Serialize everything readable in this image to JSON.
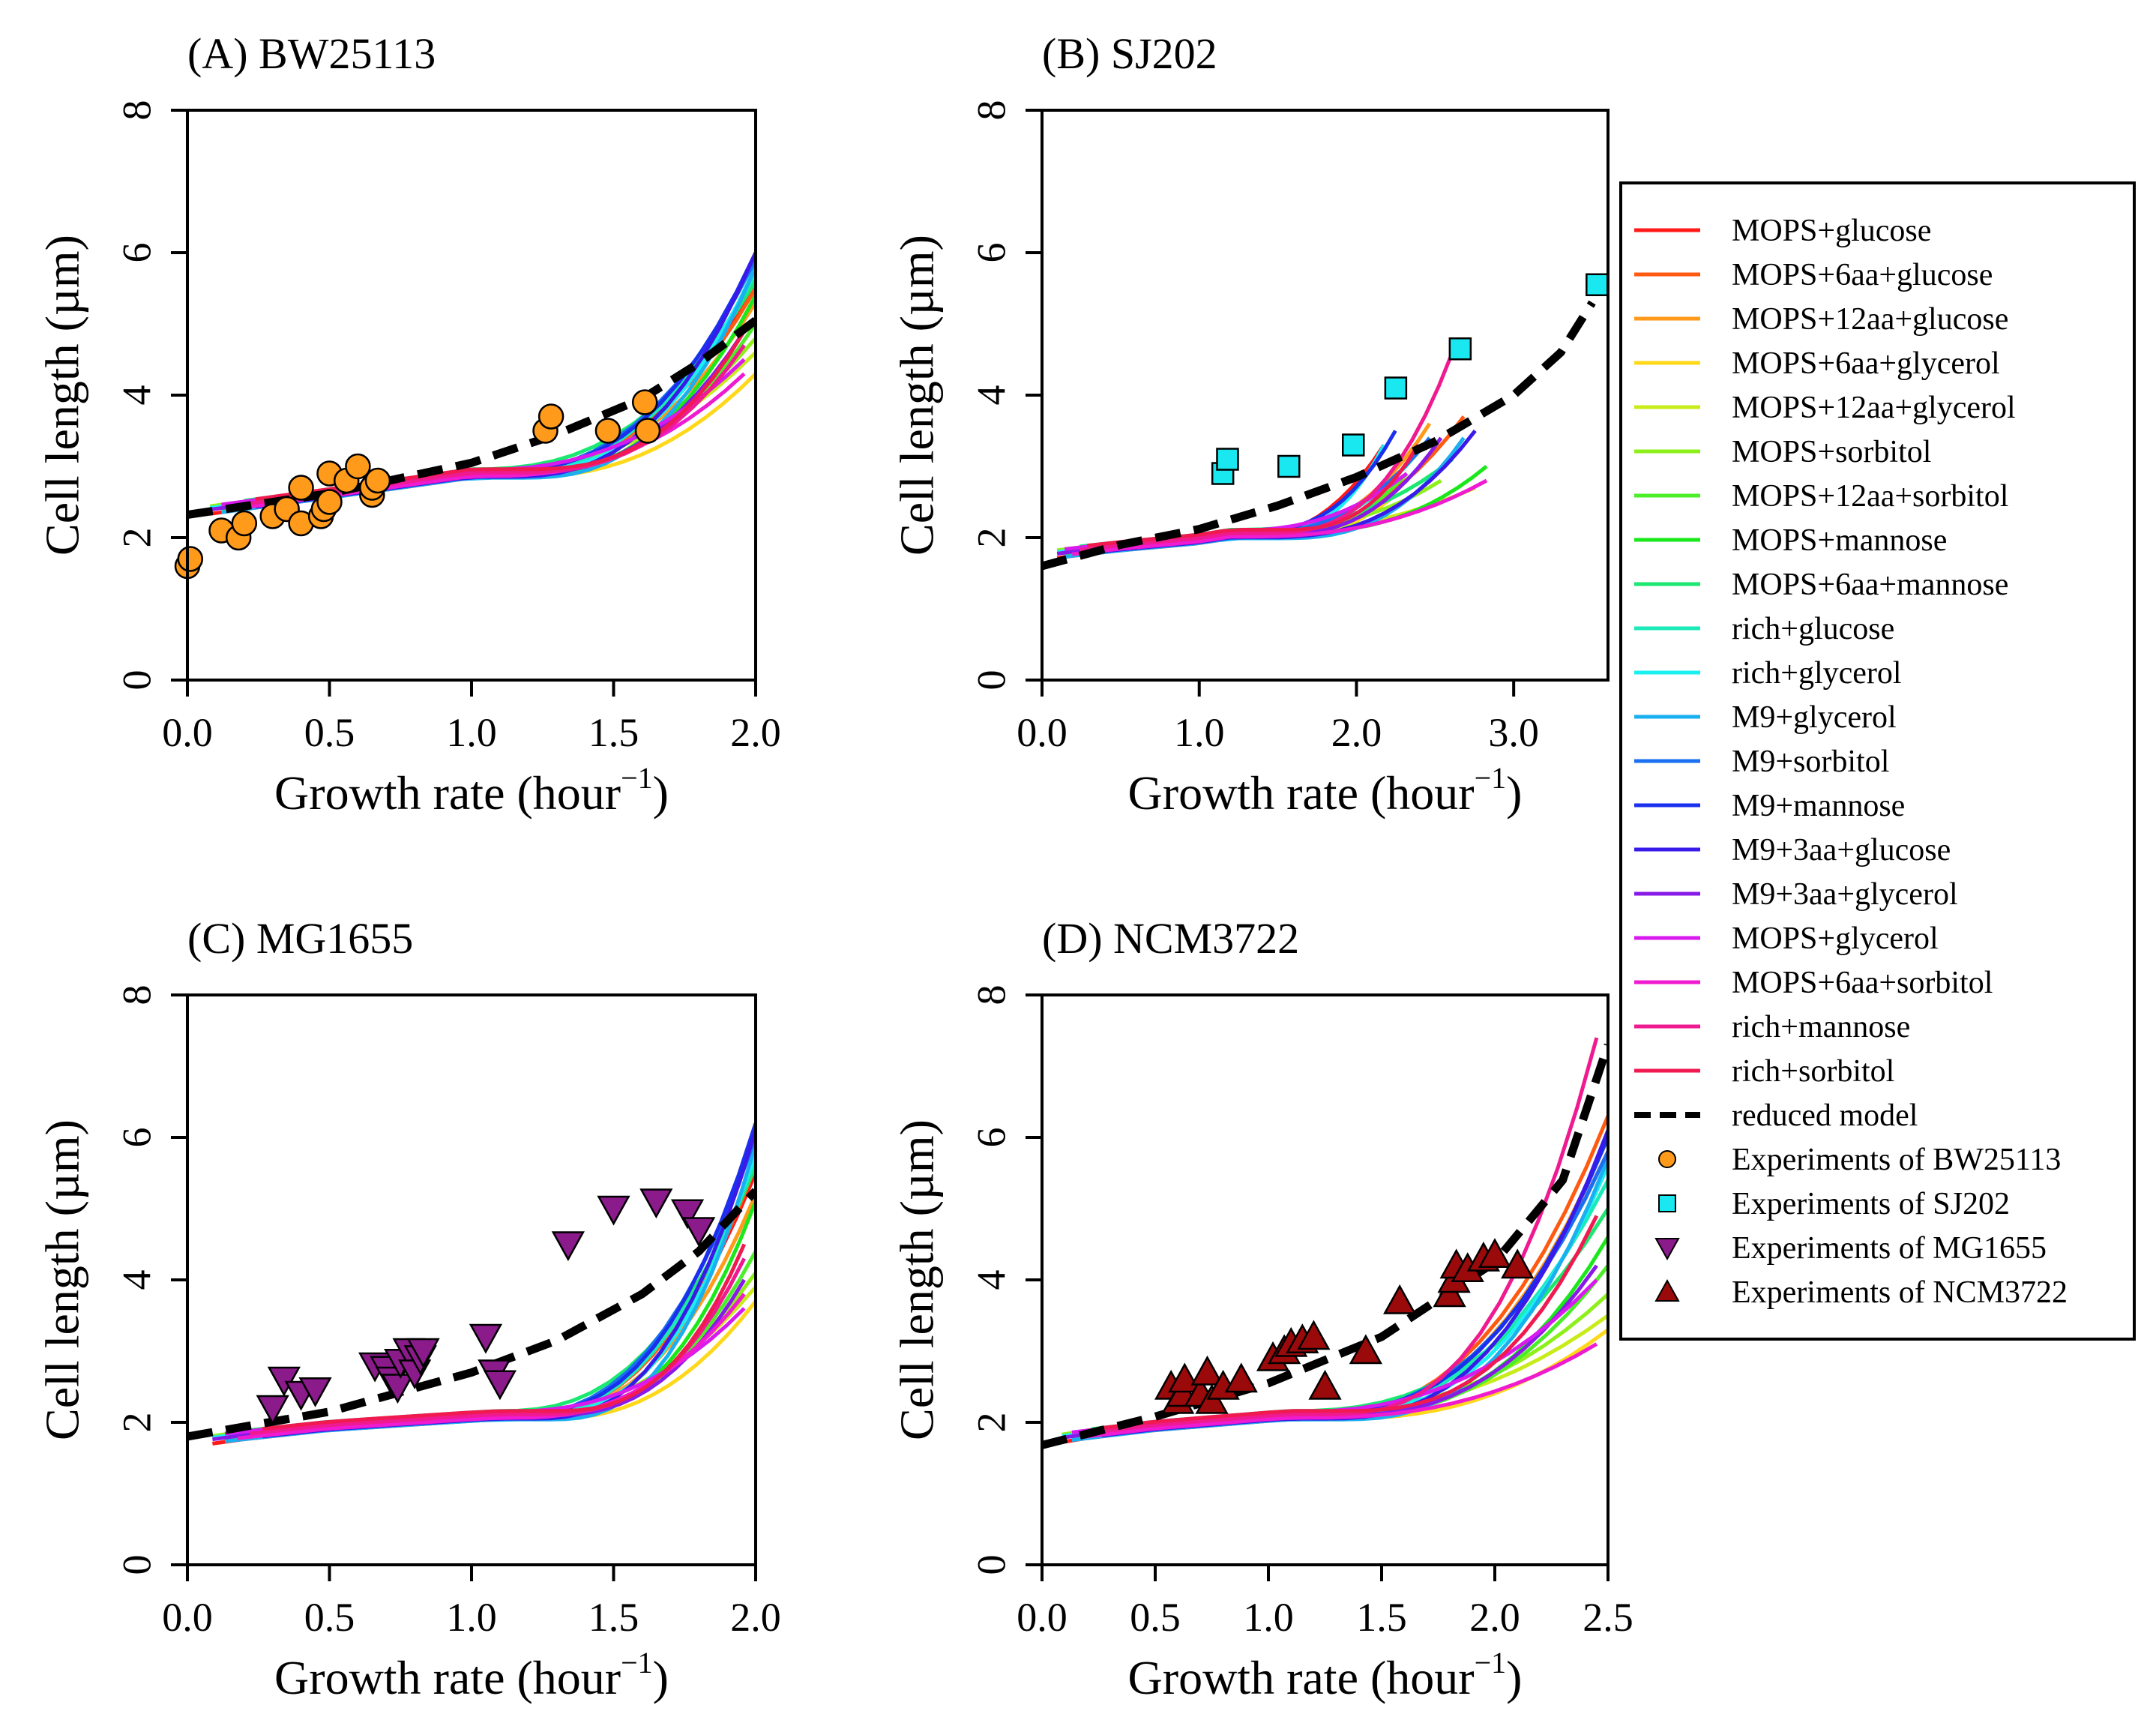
{
  "figure": {
    "ylabel": "Cell length (µm)",
    "xlabel_main": "Growth rate (hour",
    "xlabel_sup": "−1",
    "xlabel_close": ")"
  },
  "legend": {
    "lines": [
      {
        "label": "MOPS+glucose",
        "color": "#ff1a1a"
      },
      {
        "label": "MOPS+6aa+glucose",
        "color": "#ff5a10"
      },
      {
        "label": "MOPS+12aa+glucose",
        "color": "#ff9a1a"
      },
      {
        "label": "MOPS+6aa+glycerol",
        "color": "#ffd81a"
      },
      {
        "label": "MOPS+12aa+glycerol",
        "color": "#c8ec1a"
      },
      {
        "label": "MOPS+sorbitol",
        "color": "#8ef01a"
      },
      {
        "label": "MOPS+12aa+sorbitol",
        "color": "#4cee2a"
      },
      {
        "label": "MOPS+mannose",
        "color": "#1ae81a"
      },
      {
        "label": "MOPS+6aa+mannose",
        "color": "#1ae870"
      },
      {
        "label": "rich+glucose",
        "color": "#1aeab8"
      },
      {
        "label": "rich+glycerol",
        "color": "#1af0f0"
      },
      {
        "label": "M9+glycerol",
        "color": "#1ab0f0"
      },
      {
        "label": "M9+sorbitol",
        "color": "#1a70f0"
      },
      {
        "label": "M9+mannose",
        "color": "#1a30ee"
      },
      {
        "label": "M9+3aa+glucose",
        "color": "#3a1ae8"
      },
      {
        "label": "M9+3aa+glycerol",
        "color": "#881ae8"
      },
      {
        "label": "MOPS+glycerol",
        "color": "#d81aee"
      },
      {
        "label": "MOPS+6aa+sorbitol",
        "color": "#f01ad0"
      },
      {
        "label": "rich+mannose",
        "color": "#f01a90"
      },
      {
        "label": "rich+sorbitol",
        "color": "#f01a50"
      },
      {
        "label": "reduced model",
        "color": "#000000"
      }
    ],
    "points": [
      {
        "label": "Experiments of BW25113",
        "color": "#ff9a1a",
        "shape": "circle"
      },
      {
        "label": "Experiments of SJ202",
        "color": "#1ae8f0",
        "shape": "square"
      },
      {
        "label": "Experiments of MG1655",
        "color": "#8b1a8b",
        "shape": "triangle-down"
      },
      {
        "label": "Experiments of NCM3722",
        "color": "#9a0a0a",
        "shape": "triangle-up"
      }
    ]
  },
  "chart_data": [
    {
      "type": "line",
      "title": "(A) BW25113",
      "xlabel": "Growth rate (hour−1)",
      "ylabel": "Cell length (µm)",
      "xlim": [
        0,
        2.0
      ],
      "ylim": [
        0,
        8
      ],
      "xticks": [
        "0.0",
        "0.5",
        "1.0",
        "1.5",
        "2.0"
      ],
      "xtick_values": [
        0,
        0.5,
        1.0,
        1.5,
        2.0
      ],
      "yticks": [
        "0",
        "2",
        "4",
        "6",
        "8"
      ],
      "ytick_values": [
        0,
        2,
        4,
        6,
        8
      ],
      "base": [
        [
          0,
          2.35
        ],
        [
          0.5,
          2.62
        ],
        [
          1.0,
          2.9
        ]
      ],
      "tail_end_x": 2.0,
      "tail_end_y": [
        5.6,
        5.5,
        5.3,
        4.3,
        4.6,
        4.8,
        5.0,
        5.4,
        5.6,
        5.7,
        5.8,
        5.8,
        5.9,
        6.0,
        6.0,
        4.9,
        4.5,
        4.3,
        4.7,
        4.9
      ],
      "model": [
        [
          0,
          2.32
        ],
        [
          0.5,
          2.62
        ],
        [
          1.0,
          3.05
        ],
        [
          1.3,
          3.45
        ],
        [
          1.6,
          3.95
        ],
        [
          1.8,
          4.45
        ],
        [
          2.0,
          5.05
        ]
      ],
      "experiments": {
        "marker": "circle",
        "color": "#ff9a1a",
        "points": [
          [
            0,
            1.6
          ],
          [
            0.01,
            1.7
          ],
          [
            0.12,
            2.1
          ],
          [
            0.18,
            2.0
          ],
          [
            0.2,
            2.2
          ],
          [
            0.3,
            2.3
          ],
          [
            0.35,
            2.4
          ],
          [
            0.4,
            2.7
          ],
          [
            0.4,
            2.2
          ],
          [
            0.47,
            2.3
          ],
          [
            0.48,
            2.4
          ],
          [
            0.5,
            2.5
          ],
          [
            0.5,
            2.9
          ],
          [
            0.56,
            2.8
          ],
          [
            0.6,
            3.0
          ],
          [
            0.65,
            2.6
          ],
          [
            0.65,
            2.7
          ],
          [
            0.67,
            2.8
          ],
          [
            1.26,
            3.5
          ],
          [
            1.28,
            3.7
          ],
          [
            1.48,
            3.5
          ],
          [
            1.61,
            3.9
          ],
          [
            1.62,
            3.5
          ]
        ]
      }
    },
    {
      "type": "line",
      "title": "(B) SJ202",
      "xlabel": "Growth rate (hour−1)",
      "ylabel": "Cell length (µm)",
      "xlim": [
        0,
        3.6
      ],
      "ylim": [
        0,
        8
      ],
      "xticks": [
        "0.0",
        "1.0",
        "2.0",
        "3.0"
      ],
      "xtick_values": [
        0,
        1.0,
        2.0,
        3.0
      ],
      "yticks": [
        "0",
        "2",
        "4",
        "6",
        "8"
      ],
      "ytick_values": [
        0,
        2,
        4,
        6,
        8
      ],
      "base": [
        [
          0,
          1.62
        ],
        [
          0.1,
          1.78
        ],
        [
          0.5,
          1.88
        ],
        [
          1.0,
          1.98
        ],
        [
          1.2,
          2.05
        ]
      ],
      "tail_end_x": 2.9,
      "tail_end_y": [
        3.3,
        3.7,
        3.6,
        2.6,
        2.7,
        2.8,
        2.9,
        3.0,
        3.1,
        3.2,
        3.3,
        3.4,
        3.4,
        3.5,
        3.5,
        3.4,
        2.9,
        2.8,
        4.6,
        3.3
      ],
      "model": [
        [
          0,
          1.6
        ],
        [
          0.5,
          1.9
        ],
        [
          1.0,
          2.12
        ],
        [
          1.5,
          2.45
        ],
        [
          2.0,
          2.85
        ],
        [
          2.5,
          3.35
        ],
        [
          3.0,
          4.0
        ],
        [
          3.3,
          4.6
        ],
        [
          3.5,
          5.3
        ]
      ],
      "experiments": {
        "marker": "square",
        "color": "#1ae8f0",
        "points": [
          [
            1.15,
            2.9
          ],
          [
            1.18,
            3.1
          ],
          [
            1.57,
            3.0
          ],
          [
            1.98,
            3.3
          ],
          [
            2.25,
            4.1
          ],
          [
            2.66,
            4.65
          ],
          [
            3.53,
            5.55
          ]
        ]
      }
    },
    {
      "type": "line",
      "title": "(C) MG1655",
      "xlabel": "Growth rate (hour−1)",
      "ylabel": "Cell length (µm)",
      "xlim": [
        0,
        2.0
      ],
      "ylim": [
        0,
        8
      ],
      "xticks": [
        "0.0",
        "0.5",
        "1.0",
        "1.5",
        "2.0"
      ],
      "xtick_values": [
        0,
        0.5,
        1.0,
        1.5,
        2.0
      ],
      "yticks": [
        "0",
        "2",
        "4",
        "6",
        "8"
      ],
      "ytick_values": [
        0,
        2,
        4,
        6,
        8
      ],
      "base": [
        [
          0,
          1.62
        ],
        [
          0.1,
          1.78
        ],
        [
          0.5,
          1.95
        ],
        [
          1.0,
          2.08
        ],
        [
          1.1,
          2.1
        ]
      ],
      "tail_end_x": 2.0,
      "tail_end_y": [
        5.5,
        5.6,
        5.2,
        3.7,
        3.9,
        4.1,
        4.4,
        5.1,
        5.6,
        5.7,
        5.8,
        5.9,
        6.0,
        6.2,
        6.1,
        4.0,
        3.6,
        3.8,
        4.3,
        4.5
      ],
      "model": [
        [
          0,
          1.8
        ],
        [
          0.5,
          2.15
        ],
        [
          1.0,
          2.7
        ],
        [
          1.3,
          3.15
        ],
        [
          1.6,
          3.8
        ],
        [
          1.8,
          4.4
        ],
        [
          2.0,
          5.25
        ]
      ],
      "experiments": {
        "marker": "triangle-down",
        "color": "#8b1a8b",
        "points": [
          [
            0.3,
            2.2
          ],
          [
            0.34,
            2.6
          ],
          [
            0.4,
            2.4
          ],
          [
            0.45,
            2.45
          ],
          [
            0.66,
            2.8
          ],
          [
            0.7,
            2.75
          ],
          [
            0.72,
            2.6
          ],
          [
            0.74,
            2.5
          ],
          [
            0.75,
            2.85
          ],
          [
            0.78,
            3.0
          ],
          [
            0.8,
            2.7
          ],
          [
            0.82,
            2.9
          ],
          [
            0.83,
            3.0
          ],
          [
            1.05,
            3.2
          ],
          [
            1.08,
            2.7
          ],
          [
            1.1,
            2.55
          ],
          [
            1.34,
            4.5
          ],
          [
            1.5,
            5.0
          ],
          [
            1.65,
            5.1
          ],
          [
            1.76,
            4.95
          ],
          [
            1.8,
            4.7
          ]
        ]
      }
    },
    {
      "type": "line",
      "title": "(D) NCM3722",
      "xlabel": "Growth rate (hour−1)",
      "ylabel": "Cell length (µm)",
      "xlim": [
        0,
        2.5
      ],
      "ylim": [
        0,
        8
      ],
      "xticks": [
        "0.0",
        "0.5",
        "1.0",
        "1.5",
        "2.0",
        "2.5"
      ],
      "xtick_values": [
        0,
        0.5,
        1.0,
        1.5,
        2.0,
        2.5
      ],
      "yticks": [
        "0",
        "2",
        "4",
        "6",
        "8"
      ],
      "ytick_values": [
        0,
        2,
        4,
        6,
        8
      ],
      "base": [
        [
          0,
          1.65
        ],
        [
          0.1,
          1.8
        ],
        [
          0.5,
          1.95
        ],
        [
          1.0,
          2.08
        ],
        [
          1.1,
          2.1
        ]
      ],
      "tail_end_x": 2.5,
      "tail_end_y": [
        5.8,
        6.3,
        6.0,
        3.3,
        3.5,
        3.8,
        4.2,
        4.6,
        5.0,
        5.4,
        5.6,
        5.7,
        5.8,
        6.0,
        6.1,
        4.2,
        4.0,
        3.1,
        7.4,
        4.9
      ],
      "model": [
        [
          0,
          1.68
        ],
        [
          0.5,
          2.08
        ],
        [
          1.0,
          2.55
        ],
        [
          1.5,
          3.2
        ],
        [
          2.0,
          4.25
        ],
        [
          2.3,
          5.4
        ],
        [
          2.5,
          7.3
        ]
      ],
      "experiments": {
        "marker": "triangle-up",
        "color": "#9a0a0a",
        "points": [
          [
            0.57,
            2.5
          ],
          [
            0.6,
            2.3
          ],
          [
            0.62,
            2.4
          ],
          [
            0.63,
            2.6
          ],
          [
            0.7,
            2.4
          ],
          [
            0.73,
            2.7
          ],
          [
            0.75,
            2.3
          ],
          [
            0.8,
            2.5
          ],
          [
            0.88,
            2.6
          ],
          [
            1.02,
            2.9
          ],
          [
            1.07,
            3.0
          ],
          [
            1.1,
            3.1
          ],
          [
            1.15,
            3.15
          ],
          [
            1.2,
            3.2
          ],
          [
            1.25,
            2.5
          ],
          [
            1.43,
            3.0
          ],
          [
            1.58,
            3.7
          ],
          [
            1.8,
            3.8
          ],
          [
            1.82,
            4.0
          ],
          [
            1.83,
            4.2
          ],
          [
            1.88,
            4.15
          ],
          [
            1.95,
            4.3
          ],
          [
            2.0,
            4.35
          ],
          [
            2.1,
            4.2
          ]
        ]
      }
    }
  ]
}
